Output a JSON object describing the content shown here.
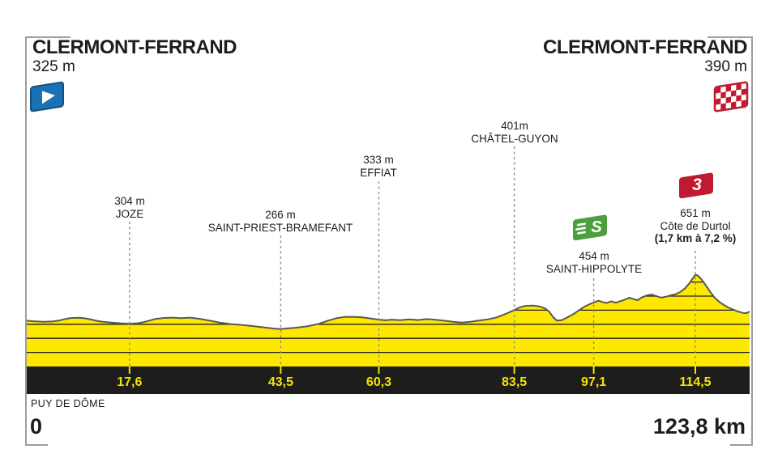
{
  "header": {
    "start": {
      "name": "CLERMONT-FERRAND",
      "elevation": "325 m",
      "icon": "start-flag-icon"
    },
    "finish": {
      "name": "CLERMONT-FERRAND",
      "elevation": "390 m",
      "icon": "finish-flag-icon"
    }
  },
  "footer": {
    "region": "PUY DE DÔME",
    "start_distance": "0",
    "total_distance": "123,8 km"
  },
  "colors": {
    "profile_yellow": "#ffe800",
    "profile_edge": "#575756",
    "bar_black": "#1d1d1b",
    "distance_yellow": "#f7e400",
    "start_flag_blue": "#1a72b4",
    "start_flag_border": "#10507e",
    "finish_flag_red": "#c01a30",
    "sprint_green": "#4d9f3e",
    "climb_red": "#c01a30",
    "dash_gray": "#8c8c8c",
    "frame_gray": "#9d9d9c",
    "text_black": "#1d1d1b"
  },
  "chart_data": {
    "type": "area",
    "title": "Stage profile Clermont-Ferrand to Clermont-Ferrand",
    "x_unit": "km",
    "y_unit": "m",
    "x_range": [
      0,
      123.8
    ],
    "y_range": [
      0,
      700
    ],
    "grid": "horizontal elevation lines every 100 m clipped to terrain",
    "gridline_elevations_m": [
      100,
      200,
      300,
      400,
      500,
      600
    ],
    "start": {
      "km": 0,
      "elevation_m": 325,
      "label": "CLERMONT-FERRAND"
    },
    "finish": {
      "km": 123.8,
      "elevation_m": 390,
      "label": "CLERMONT-FERRAND"
    },
    "waypoints": [
      {
        "km": 17.6,
        "distance_label": "17,6",
        "elevation_m": 304,
        "elevation_label": "304 m",
        "name": "JOZE"
      },
      {
        "km": 43.5,
        "distance_label": "43,5",
        "elevation_m": 266,
        "elevation_label": "266 m",
        "name": "SAINT-PRIEST-BRAMEFANT"
      },
      {
        "km": 60.3,
        "distance_label": "60,3",
        "elevation_m": 333,
        "elevation_label": "333 m",
        "name": "EFFIAT"
      },
      {
        "km": 83.5,
        "distance_label": "83,5",
        "elevation_m": 401,
        "elevation_label": "401m",
        "name": "CHÂTEL-GUYON"
      },
      {
        "km": 97.1,
        "distance_label": "97,1",
        "elevation_m": 454,
        "elevation_label": "454 m",
        "name": "SAINT-HIPPOLYTE",
        "icon": "sprint-icon",
        "icon_glyph": "S"
      },
      {
        "km": 114.5,
        "distance_label": "114,5",
        "elevation_m": 651,
        "elevation_label": "651 m",
        "name": "Côte de Durtol",
        "detail": "(1,7 km à 7,2 %)",
        "icon": "category-3-climb-icon",
        "icon_glyph": "3"
      }
    ],
    "profile_points": [
      [
        0,
        325
      ],
      [
        1.5,
        320
      ],
      [
        3,
        317
      ],
      [
        4.5,
        320
      ],
      [
        5.5,
        326
      ],
      [
        6.5,
        336
      ],
      [
        7.5,
        344
      ],
      [
        9,
        346
      ],
      [
        10,
        342
      ],
      [
        11,
        334
      ],
      [
        12,
        324
      ],
      [
        13,
        318
      ],
      [
        14.5,
        312
      ],
      [
        16,
        307
      ],
      [
        17.6,
        304
      ],
      [
        19,
        307
      ],
      [
        20,
        315
      ],
      [
        21,
        326
      ],
      [
        22,
        338
      ],
      [
        23.5,
        345
      ],
      [
        25,
        347
      ],
      [
        26.5,
        343
      ],
      [
        28,
        347
      ],
      [
        29.5,
        339
      ],
      [
        31,
        328
      ],
      [
        33,
        312
      ],
      [
        35,
        301
      ],
      [
        37,
        294
      ],
      [
        39,
        286
      ],
      [
        41,
        276
      ],
      [
        42.5,
        269
      ],
      [
        43.5,
        266
      ],
      [
        44.5,
        270
      ],
      [
        46,
        275
      ],
      [
        48,
        285
      ],
      [
        50,
        303
      ],
      [
        51.5,
        324
      ],
      [
        53,
        343
      ],
      [
        54.5,
        352
      ],
      [
        56,
        353
      ],
      [
        57.5,
        349
      ],
      [
        59,
        341
      ],
      [
        60.3,
        333
      ],
      [
        61.5,
        328
      ],
      [
        62.5,
        333
      ],
      [
        64,
        329
      ],
      [
        65.5,
        335
      ],
      [
        67,
        330
      ],
      [
        68.5,
        337
      ],
      [
        70,
        332
      ],
      [
        71.5,
        325
      ],
      [
        73,
        318
      ],
      [
        74.5,
        312
      ],
      [
        76,
        318
      ],
      [
        77.5,
        327
      ],
      [
        79,
        335
      ],
      [
        80.5,
        349
      ],
      [
        82,
        373
      ],
      [
        83.5,
        401
      ],
      [
        84.5,
        421
      ],
      [
        85.5,
        431
      ],
      [
        86.8,
        432
      ],
      [
        87.8,
        427
      ],
      [
        88.8,
        412
      ],
      [
        89.5,
        388
      ],
      [
        90.2,
        348
      ],
      [
        90.8,
        326
      ],
      [
        91.6,
        329
      ],
      [
        92.6,
        349
      ],
      [
        93.6,
        372
      ],
      [
        94.6,
        400
      ],
      [
        95.6,
        427
      ],
      [
        96.4,
        443
      ],
      [
        97.1,
        454
      ],
      [
        97.9,
        467
      ],
      [
        98.6,
        458
      ],
      [
        99.3,
        451
      ],
      [
        100.1,
        463
      ],
      [
        100.9,
        453
      ],
      [
        101.6,
        463
      ],
      [
        102.4,
        475
      ],
      [
        103.2,
        489
      ],
      [
        103.9,
        479
      ],
      [
        104.6,
        471
      ],
      [
        105.4,
        492
      ],
      [
        106.3,
        507
      ],
      [
        107.1,
        511
      ],
      [
        107.9,
        499
      ],
      [
        108.7,
        489
      ],
      [
        109.5,
        496
      ],
      [
        110.3,
        506
      ],
      [
        111.1,
        513
      ],
      [
        111.9,
        529
      ],
      [
        112.7,
        554
      ],
      [
        113.5,
        592
      ],
      [
        114.1,
        628
      ],
      [
        114.5,
        651
      ],
      [
        114.9,
        647
      ],
      [
        115.5,
        621
      ],
      [
        116.2,
        583
      ],
      [
        117,
        533
      ],
      [
        117.8,
        489
      ],
      [
        118.6,
        459
      ],
      [
        119.4,
        437
      ],
      [
        120.2,
        417
      ],
      [
        121,
        404
      ],
      [
        121.8,
        391
      ],
      [
        122.6,
        381
      ],
      [
        123.2,
        378
      ],
      [
        123.8,
        390
      ]
    ]
  }
}
